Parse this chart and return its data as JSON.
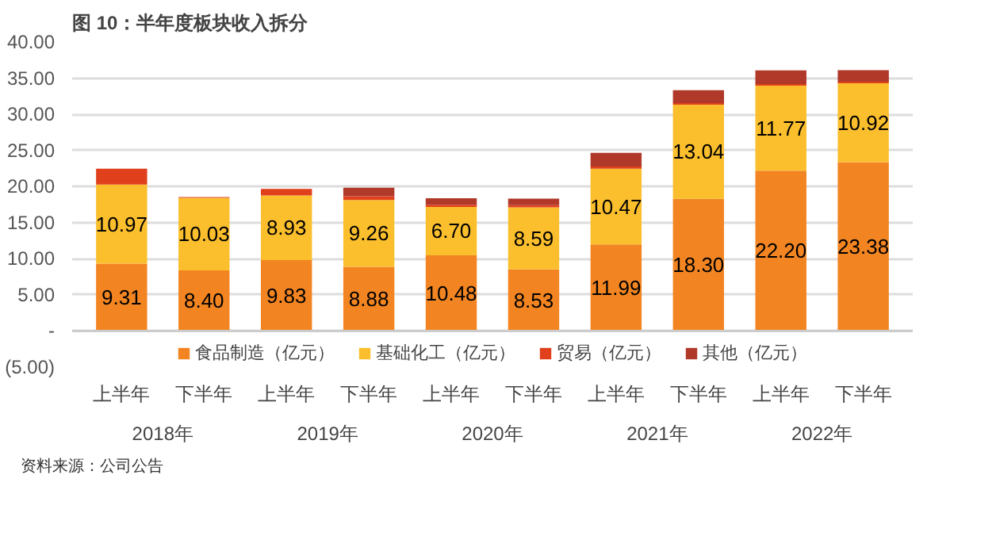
{
  "chart_data": {
    "type": "bar",
    "title": "图 10：半年度板块收入拆分",
    "stacked": true,
    "categories": [
      "上半年",
      "下半年",
      "上半年",
      "下半年",
      "上半年",
      "下半年",
      "上半年",
      "下半年",
      "上半年",
      "下半年"
    ],
    "annotations": [
      "2018年",
      "2019年",
      "2020年",
      "2021年",
      "2022年",
      "资料来源：公司公告"
    ],
    "series": [
      {
        "name": "食品制造（亿元）",
        "color": "#f28522",
        "values": [
          9.31,
          8.4,
          9.83,
          8.88,
          10.48,
          8.53,
          11.99,
          18.3,
          22.2,
          23.38
        ],
        "value_labels": [
          "9.31",
          "8.40",
          "9.83",
          "8.88",
          "10.48",
          "8.53",
          "11.99",
          "18.30",
          "22.20",
          "23.38"
        ]
      },
      {
        "name": "基础化工（亿元）",
        "color": "#fbbf2d",
        "values": [
          10.97,
          10.03,
          8.93,
          9.26,
          6.7,
          8.59,
          10.47,
          13.04,
          11.77,
          10.92
        ],
        "value_labels": [
          "10.97",
          "10.03",
          "8.93",
          "9.26",
          "6.70",
          "8.59",
          "10.47",
          "13.04",
          "11.77",
          "10.92"
        ]
      },
      {
        "name": "贸易（亿元）",
        "color": "#e0401c",
        "values": [
          2.2,
          0.1,
          0.9,
          0.5,
          0.3,
          0.3,
          0.3,
          0.2,
          0.2,
          0.2
        ]
      },
      {
        "name": "其他（亿元）",
        "color": "#b0392a",
        "values": [
          0,
          0,
          0,
          1.2,
          0.9,
          0.9,
          1.9,
          1.8,
          1.9,
          1.6
        ]
      }
    ],
    "ylim": [
      -5,
      40
    ],
    "yticks": [
      {
        "value": -5,
        "label": "(5.00)"
      },
      {
        "value": 0,
        "label": "-"
      },
      {
        "value": 5,
        "label": "5.00"
      },
      {
        "value": 10,
        "label": "10.00"
      },
      {
        "value": 15,
        "label": "15.00"
      },
      {
        "value": 20,
        "label": "20.00"
      },
      {
        "value": 25,
        "label": "25.00"
      },
      {
        "value": 30,
        "label": "30.00"
      },
      {
        "value": 35,
        "label": "35.00"
      },
      {
        "value": 40,
        "label": "40.00"
      }
    ],
    "grid": "y",
    "legend": "bottom"
  }
}
